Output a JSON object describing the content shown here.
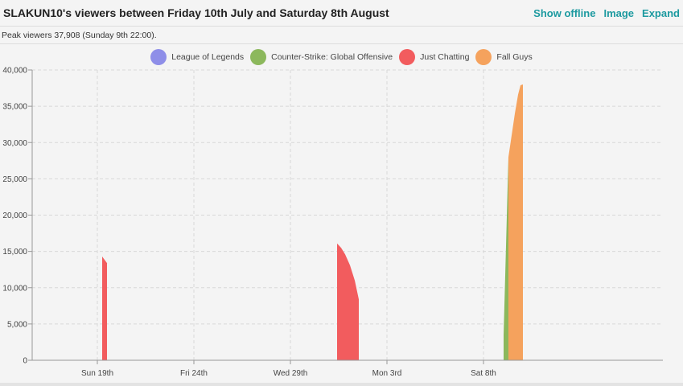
{
  "header": {
    "title": "SLAKUN10's viewers between Friday 10th July and Saturday 8th August",
    "links": [
      "Show offline",
      "Image",
      "Expand"
    ]
  },
  "subtitle": "Peak viewers 37,908 (Sunday 9th 22:00).",
  "chart_data": {
    "type": "area",
    "title": "",
    "xlabel": "",
    "ylabel": "",
    "ylim": [
      0,
      40000
    ],
    "y_ticks": [
      "0",
      "5,000",
      "10,000",
      "15,000",
      "20,000",
      "25,000",
      "30,000",
      "35,000",
      "40,000"
    ],
    "x_tick_labels": [
      {
        "label": "Sun 19th",
        "date": "2020-07-19"
      },
      {
        "label": "Fri 24th",
        "date": "2020-07-24"
      },
      {
        "label": "Wed 29th",
        "date": "2020-07-29"
      },
      {
        "label": "Mon 3rd",
        "date": "2020-08-03"
      },
      {
        "label": "Sat 8th",
        "date": "2020-08-08"
      }
    ],
    "legend_position": "top",
    "grid": true,
    "series": [
      {
        "name": "League of Legends",
        "color": "#8e8ee8",
        "segments": []
      },
      {
        "name": "Counter-Strike: Global Offensive",
        "color": "#8cb85c",
        "segments": [
          [
            [
              "2020-08-09T01:00",
              3500
            ],
            [
              "2020-08-09T07:00",
              28000
            ]
          ]
        ]
      },
      {
        "name": "Just Chatting",
        "color": "#f25c5e",
        "segments": [
          [
            [
              "2020-07-19T06:00",
              14300
            ],
            [
              "2020-07-19T12:00",
              13400
            ]
          ],
          [
            [
              "2020-07-31T10:00",
              16100
            ],
            [
              "2020-07-31T15:00",
              15500
            ],
            [
              "2020-07-31T20:00",
              14600
            ],
            [
              "2020-08-01T02:00",
              13100
            ],
            [
              "2020-08-01T08:00",
              11000
            ],
            [
              "2020-08-01T13:00",
              8400
            ]
          ]
        ]
      },
      {
        "name": "Fall Guys",
        "color": "#f5a25d",
        "segments": [
          [
            [
              "2020-08-09T07:00",
              28000
            ],
            [
              "2020-08-09T11:00",
              31000
            ],
            [
              "2020-08-09T15:00",
              34000
            ],
            [
              "2020-08-09T19:00",
              36600
            ],
            [
              "2020-08-09T22:00",
              37900
            ],
            [
              "2020-08-10T01:00",
              38000
            ]
          ]
        ]
      }
    ]
  }
}
